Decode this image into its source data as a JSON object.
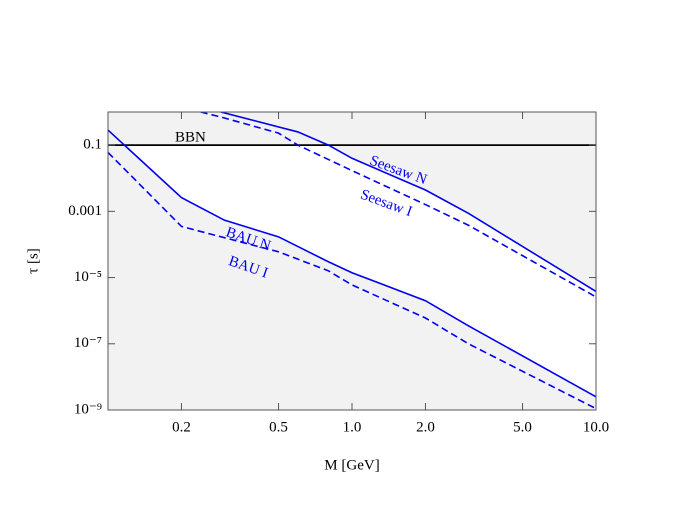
{
  "chart_data": {
    "type": "line",
    "xlabel": "M [GeV]",
    "ylabel": "τ [s]",
    "xscale": "log",
    "yscale": "log",
    "xlim": [
      0.1,
      10
    ],
    "ylim": [
      1e-09,
      1
    ],
    "xticks": [
      0.2,
      0.5,
      {
        "value": 1,
        "label": "1.0"
      },
      {
        "value": 2,
        "label": "2.0"
      },
      {
        "value": 5,
        "label": "5.0"
      },
      {
        "value": 10,
        "label": "10.0"
      }
    ],
    "yticks": [
      0.1,
      0.001,
      {
        "value": 1e-05,
        "label": "10⁻⁵"
      },
      {
        "value": 1e-07,
        "label": "10⁻⁷"
      },
      {
        "value": 1e-09,
        "label": "10⁻⁹"
      }
    ],
    "series": [
      {
        "name": "BBN",
        "color": "#000000",
        "dashed": false,
        "x": [
          0.1,
          10
        ],
        "values": [
          0.1,
          0.1
        ]
      },
      {
        "name": "BAU N",
        "color": "#0000ee",
        "dashed": false,
        "x": [
          0.1,
          0.2,
          0.3,
          0.5,
          0.8,
          1,
          2,
          3,
          10
        ],
        "values": [
          0.285,
          0.0026,
          0.00054,
          0.00017,
          3e-05,
          1.4e-05,
          2e-06,
          3.5e-07,
          2.5e-09
        ]
      },
      {
        "name": "BAU I",
        "color": "#0000ee",
        "dashed": true,
        "x": [
          0.1,
          0.2,
          0.3,
          0.5,
          0.8,
          1,
          2,
          3,
          10
        ],
        "values": [
          0.06,
          0.00035,
          0.00016,
          6e-05,
          1.6e-05,
          6e-06,
          6e-07,
          1e-07,
          1.1e-09
        ]
      },
      {
        "name": "Seesaw N",
        "color": "#0000ee",
        "dashed": false,
        "x": [
          0.29,
          0.6,
          0.8,
          1,
          2,
          3,
          10
        ],
        "values": [
          1,
          0.25,
          0.1,
          0.04,
          0.0044,
          0.00087,
          3.8e-06
        ]
      },
      {
        "name": "Seesaw I",
        "color": "#0000ee",
        "dashed": true,
        "x": [
          0.24,
          0.3,
          0.5,
          0.6,
          1,
          2,
          3,
          10
        ],
        "values": [
          1,
          0.66,
          0.23,
          0.1,
          0.017,
          0.0016,
          0.00038,
          2.6e-06
        ]
      }
    ]
  }
}
